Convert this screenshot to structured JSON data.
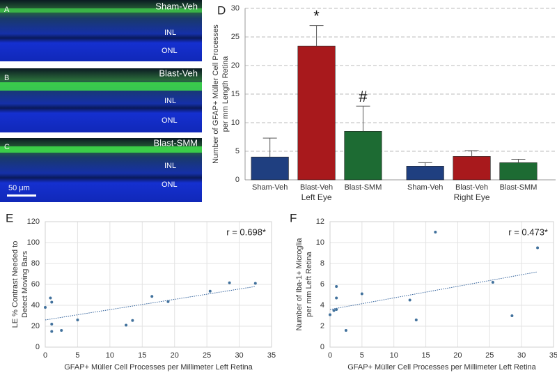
{
  "micrographs": [
    {
      "label": "A",
      "condition": "Sham-Veh",
      "layers": [
        "INL",
        "ONL"
      ]
    },
    {
      "label": "B",
      "condition": "Blast-Veh",
      "layers": [
        "INL",
        "ONL"
      ]
    },
    {
      "label": "C",
      "condition": "Blast-SMM",
      "layers": [
        "INL",
        "ONL"
      ],
      "scale_bar": "50 μm"
    }
  ],
  "chart_data": [
    {
      "type": "bar",
      "panel_label": "D",
      "ylabel": [
        "Number of GFAP+ Müller Cell Processes",
        "per mm Length Retina"
      ],
      "categories": [
        "Sham-Veh",
        "Blast-Veh",
        "Blast-SMM",
        "Sham-Veh",
        "Blast-Veh",
        "Blast-SMM"
      ],
      "group_labels": [
        "Left Eye",
        "Right Eye"
      ],
      "values": [
        4.0,
        23.4,
        8.5,
        2.4,
        4.1,
        3.0
      ],
      "errors": [
        3.3,
        3.6,
        4.4,
        0.6,
        1.0,
        0.6
      ],
      "colors": [
        "#1f3f80",
        "#a8191c",
        "#1d6b33",
        "#1f3f80",
        "#a8191c",
        "#1d6b33"
      ],
      "annotations": [
        null,
        "*",
        "#",
        null,
        null,
        null
      ],
      "ylim": [
        0,
        30
      ],
      "yticks": [
        0,
        5,
        10,
        15,
        20,
        25,
        30
      ],
      "grid": true,
      "grid_style": "dashed"
    },
    {
      "type": "scatter",
      "panel_label": "E",
      "xlabel": "GFAP+ Müller Cell Processes per Millimeter Left Retina",
      "ylabel": [
        "LE % Contrast Needed to",
        "Detect Moving Bars"
      ],
      "annotation": "r = 0.698*",
      "color": "#41719c",
      "x": [
        0,
        0.8,
        1,
        1,
        1,
        2.5,
        5,
        12.5,
        13.5,
        16.5,
        19,
        25.5,
        28.5,
        32.5
      ],
      "values": [
        38,
        47,
        43,
        22,
        15,
        16,
        26,
        21,
        25.5,
        48.5,
        43.5,
        53.5,
        61.5,
        61
      ],
      "trendline": {
        "x": [
          0,
          32.5
        ],
        "y": [
          26,
          58
        ]
      },
      "xlim": [
        0,
        35
      ],
      "xticks": [
        0,
        5,
        10,
        15,
        20,
        25,
        30,
        35
      ],
      "ylim": [
        0,
        120
      ],
      "yticks": [
        0,
        20,
        40,
        60,
        80,
        100,
        120
      ],
      "grid": true,
      "grid_style": "solid"
    },
    {
      "type": "scatter",
      "panel_label": "F",
      "xlabel": "GFAP+ Müller Cell Processes per Millimeter Left Retina",
      "ylabel": [
        "Number of Iba-1+ Microglia",
        "per mm Left Retina"
      ],
      "annotation": "r = 0.473*",
      "color": "#41719c",
      "x": [
        0,
        0.6,
        1,
        1,
        1,
        2.5,
        5,
        12.5,
        13.5,
        16.5,
        25.5,
        28.5,
        32.5
      ],
      "values": [
        3.1,
        3.5,
        3.6,
        5.8,
        4.7,
        1.6,
        5.1,
        4.5,
        2.6,
        11,
        6.2,
        3.0,
        9.5
      ],
      "trendline": {
        "x": [
          0,
          32.5
        ],
        "y": [
          3.6,
          7.2
        ]
      },
      "xlim": [
        0,
        35
      ],
      "xticks": [
        0,
        5,
        10,
        15,
        20,
        25,
        30,
        35
      ],
      "ylim": [
        0,
        12
      ],
      "yticks": [
        0,
        2,
        4,
        6,
        8,
        10,
        12
      ],
      "grid": true,
      "grid_style": "solid"
    }
  ]
}
